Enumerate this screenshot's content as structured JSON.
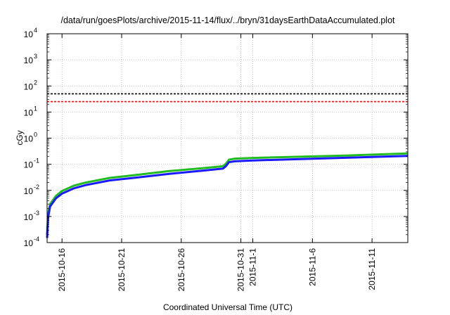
{
  "chart_data": {
    "type": "line",
    "title": "/data/run/goesPlots/archive/2015-11-14/flux/../bryn/31daysEarthDataAccumulated.plot",
    "xlabel": "Coordinated Universal Time (UTC)",
    "ylabel": "cGy",
    "yscale": "log",
    "ylim": [
      0.0001,
      10000
    ],
    "xlim": [
      "2015-10-14T18:00",
      "2015-11-14T00:00"
    ],
    "grid": true,
    "legend": "none",
    "y_ticks": [
      {
        "base": "10",
        "exp": "-4"
      },
      {
        "base": "10",
        "exp": "-3"
      },
      {
        "base": "10",
        "exp": "-2"
      },
      {
        "base": "10",
        "exp": "-1"
      },
      {
        "base": "10",
        "exp": "0"
      },
      {
        "base": "10",
        "exp": "1"
      },
      {
        "base": "10",
        "exp": "2"
      },
      {
        "base": "10",
        "exp": "3"
      },
      {
        "base": "10",
        "exp": "4"
      }
    ],
    "x_ticks": [
      {
        "date": "2015-10-16",
        "label": "2015-10-16"
      },
      {
        "date": "2015-10-21",
        "label": "2015-10-21"
      },
      {
        "date": "2015-10-26",
        "label": "2015-10-26"
      },
      {
        "date": "2015-10-31",
        "label": "2015-10-31"
      },
      {
        "date": "2015-11-01",
        "label": "2015-11-1"
      },
      {
        "date": "2015-11-06",
        "label": "2015-11-6"
      },
      {
        "date": "2015-11-11",
        "label": "2015-11-11"
      }
    ],
    "reference_lines": [
      {
        "color": "#000000",
        "y": 50,
        "style": "dashed"
      },
      {
        "color": "#ff0000",
        "y": 25,
        "style": "dashed"
      }
    ],
    "series": [
      {
        "color": "#22bb22",
        "x": [
          "2015-10-14T18:00",
          "2015-10-14T20:00",
          "2015-10-15T00:00",
          "2015-10-15T12:00",
          "2015-10-16T00:00",
          "2015-10-17T00:00",
          "2015-10-18T00:00",
          "2015-10-20T00:00",
          "2015-10-22T00:00",
          "2015-10-25T00:00",
          "2015-10-28T00:00",
          "2015-10-29T12:00",
          "2015-10-29T18:00",
          "2015-10-30T00:00",
          "2015-10-30T12:00",
          "2015-11-01T00:00",
          "2015-11-05T00:00",
          "2015-11-09T00:00",
          "2015-11-14T00:00"
        ],
        "values": [
          0.0002,
          0.0012,
          0.003,
          0.0062,
          0.0095,
          0.0152,
          0.02,
          0.03,
          0.038,
          0.055,
          0.072,
          0.084,
          0.105,
          0.15,
          0.165,
          0.175,
          0.195,
          0.218,
          0.26
        ]
      },
      {
        "color": "#1a1aff",
        "x": [
          "2015-10-14T18:00",
          "2015-10-14T20:00",
          "2015-10-15T00:00",
          "2015-10-15T12:00",
          "2015-10-16T00:00",
          "2015-10-17T00:00",
          "2015-10-18T00:00",
          "2015-10-20T00:00",
          "2015-10-22T00:00",
          "2015-10-25T00:00",
          "2015-10-28T00:00",
          "2015-10-29T12:00",
          "2015-10-29T18:00",
          "2015-10-30T00:00",
          "2015-10-30T12:00",
          "2015-11-01T00:00",
          "2015-11-05T00:00",
          "2015-11-09T00:00",
          "2015-11-14T00:00"
        ],
        "values": [
          0.00015,
          0.0009,
          0.0024,
          0.005,
          0.0075,
          0.012,
          0.016,
          0.024,
          0.03,
          0.043,
          0.058,
          0.068,
          0.085,
          0.12,
          0.13,
          0.14,
          0.158,
          0.178,
          0.21
        ]
      }
    ]
  }
}
